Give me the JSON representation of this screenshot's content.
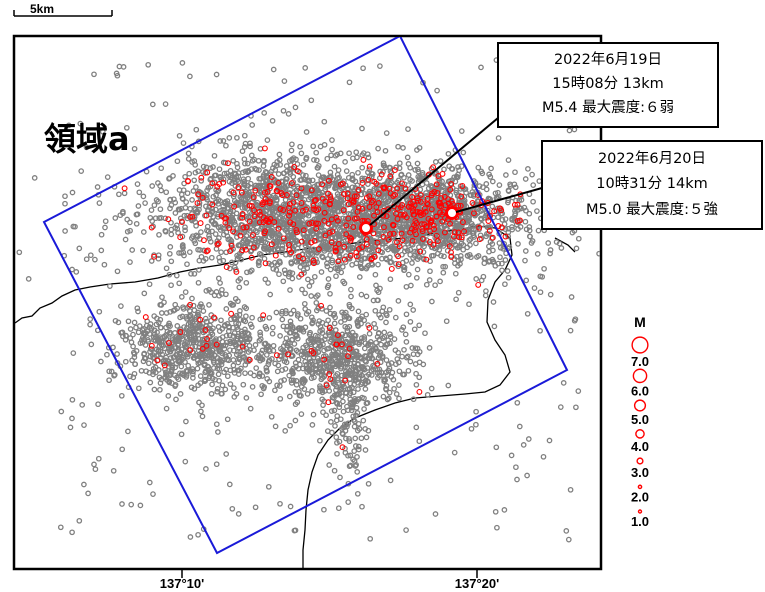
{
  "scale_bar": {
    "label": "5km"
  },
  "region_label": "領域a",
  "callouts": [
    {
      "line1": "2022年6月19日",
      "line2": "15時08分 13km",
      "line3": "M5.4 最大震度:６弱"
    },
    {
      "line1": "2022年6月20日",
      "line2": "10時31分 14km",
      "line3": "M5.0 最大震度:５強"
    }
  ],
  "axis": {
    "lon_ticks": [
      "137°10'",
      "137°20'"
    ]
  },
  "legend": {
    "title": "M",
    "items": [
      {
        "label": "7.0",
        "magnitude": 7.0
      },
      {
        "label": "6.0",
        "magnitude": 6.0
      },
      {
        "label": "5.0",
        "magnitude": 5.0
      },
      {
        "label": "4.0",
        "magnitude": 4.0
      },
      {
        "label": "3.0",
        "magnitude": 3.0
      },
      {
        "label": "2.0",
        "magnitude": 2.0
      },
      {
        "label": "1.0",
        "magnitude": 1.0
      }
    ]
  },
  "colors": {
    "region_outline": "#1a1ad8",
    "highlight_events": "#ff0000",
    "background_events": "#808080",
    "coastline": "#000000"
  }
}
